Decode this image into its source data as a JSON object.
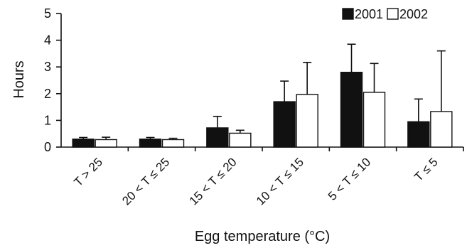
{
  "chart_data": {
    "type": "bar",
    "xlabel": "Egg temperature (°C)",
    "ylabel": "Hours",
    "ylim": [
      0,
      5
    ],
    "yticks": [
      0,
      1,
      2,
      3,
      4,
      5
    ],
    "categories": [
      "T > 25",
      "20 < T ≤ 25",
      "15 < T ≤ 20",
      "10 < T ≤ 15",
      "5 < T ≤ 10",
      "T ≤ 5"
    ],
    "series": [
      {
        "name": "2001",
        "color": "#111111",
        "values": [
          0.3,
          0.3,
          0.72,
          1.7,
          2.8,
          0.95
        ],
        "error_upper": [
          0.36,
          0.36,
          1.15,
          2.47,
          3.85,
          1.8
        ]
      },
      {
        "name": "2002",
        "color": "#ffffff",
        "values": [
          0.28,
          0.28,
          0.52,
          1.97,
          2.05,
          1.33
        ],
        "error_upper": [
          0.37,
          0.33,
          0.63,
          3.17,
          3.13,
          3.6
        ]
      }
    ],
    "legend_position": "top-right",
    "grid": false
  }
}
